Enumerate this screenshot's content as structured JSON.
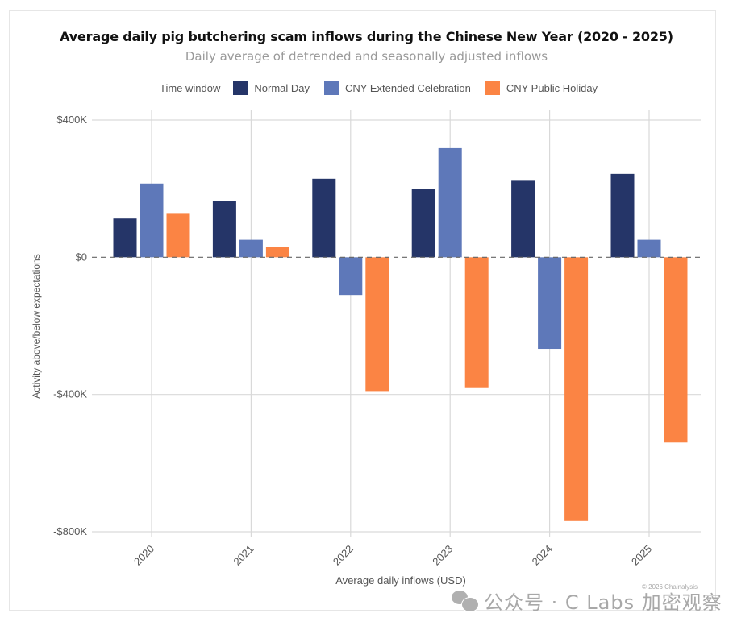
{
  "chart_data": {
    "type": "bar",
    "title": "Average daily pig butchering scam inflows during the Chinese New Year (2020 - 2025)",
    "subtitle": "Daily average of detrended and seasonally adjusted inflows",
    "xlabel": "Average daily inflows (USD)",
    "ylabel": "Activity above/below expectations",
    "categories": [
      "2020",
      "2021",
      "2022",
      "2023",
      "2024",
      "2025"
    ],
    "series": [
      {
        "name": "Normal Day",
        "color": "#253568",
        "values": [
          113000,
          165000,
          229000,
          199000,
          223000,
          243000
        ]
      },
      {
        "name": "CNY Extended Celebration",
        "color": "#5e78b9",
        "values": [
          215000,
          51000,
          -110000,
          318000,
          -267000,
          51000
        ]
      },
      {
        "name": "CNY Public Holiday",
        "color": "#fb8444",
        "values": [
          129000,
          30000,
          -390000,
          -379000,
          -769000,
          -540000
        ]
      }
    ],
    "ylim": [
      -800000,
      400000
    ],
    "yticks": [
      400000,
      0,
      -400000,
      -800000
    ],
    "ytick_labels": [
      "$400K",
      "$0",
      "-$400K",
      "-$800K"
    ],
    "grid": true,
    "zero_line": "dashed",
    "legend_title": "Time window",
    "legend_position": "top"
  },
  "footer": {
    "copyright": "© 2026 Chainalysis",
    "watermark": "公众号 · C Labs 加密观察"
  }
}
